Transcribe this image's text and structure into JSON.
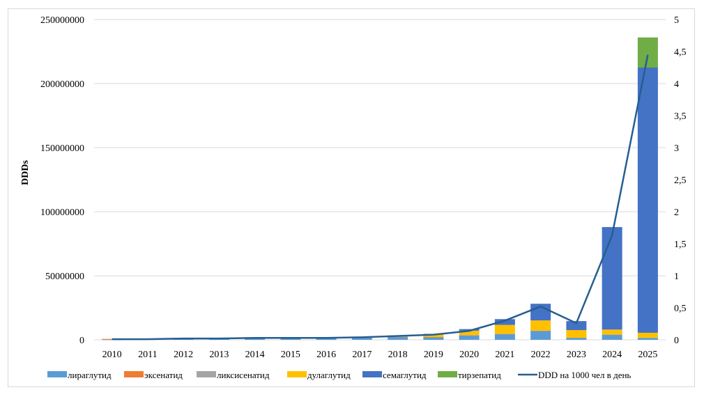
{
  "chart_data": {
    "type": "bar",
    "stacked": true,
    "ylabel": "DDDs",
    "ylim": [
      0,
      250000000
    ],
    "y_ticks": [
      "0",
      "50000000",
      "100000000",
      "150000000",
      "200000000",
      "250000000"
    ],
    "y2lim": [
      0,
      5
    ],
    "y2_ticks": [
      "0",
      "0,5",
      "1",
      "1,5",
      "2",
      "2,5",
      "3",
      "3,5",
      "4",
      "4,5",
      "5"
    ],
    "grid": true,
    "legend": "bottom",
    "categories": [
      "2010",
      "2011",
      "2012",
      "2013",
      "2014",
      "2015",
      "2016",
      "2017",
      "2018",
      "2019",
      "2020",
      "2021",
      "2022",
      "2023",
      "2024",
      "2025"
    ],
    "series": [
      {
        "name": "лираглутид",
        "color": "#5b9bd5",
        "values": [
          100000,
          500000,
          800000,
          900000,
          1200000,
          1300000,
          1400000,
          1600000,
          2200000,
          2000000,
          3500000,
          4500000,
          7000000,
          1500000,
          4000000,
          1500000
        ]
      },
      {
        "name": "эксенатид",
        "color": "#ed7d31",
        "values": [
          600000,
          200000,
          100000,
          50000,
          50000,
          50000,
          50000,
          50000,
          50000,
          50000,
          50000,
          50000,
          50000,
          0,
          0,
          0
        ]
      },
      {
        "name": "ликсисенатид",
        "color": "#a5a5a5",
        "values": [
          0,
          0,
          0,
          50000,
          100000,
          100000,
          100000,
          100000,
          100000,
          100000,
          100000,
          100000,
          100000,
          100000,
          0,
          0
        ]
      },
      {
        "name": "дулаглутид",
        "color": "#ffc000",
        "values": [
          0,
          0,
          0,
          0,
          0,
          100000,
          300000,
          600000,
          1200000,
          2000000,
          3500000,
          7000000,
          8000000,
          6000000,
          4000000,
          4000000
        ]
      },
      {
        "name": "семаглутид",
        "color": "#4472c4",
        "values": [
          0,
          0,
          0,
          0,
          0,
          0,
          0,
          0,
          0,
          500000,
          1200000,
          4500000,
          13000000,
          7000000,
          80000000,
          207000000
        ]
      },
      {
        "name": "тирзепатид",
        "color": "#70ad47",
        "values": [
          0,
          0,
          0,
          0,
          0,
          0,
          0,
          0,
          0,
          0,
          0,
          0,
          0,
          0,
          0,
          23500000
        ]
      }
    ],
    "line_series": {
      "name": "DDD на 1000 чел в день",
      "color": "#255e91",
      "axis": "right",
      "values": [
        0.01,
        0.01,
        0.02,
        0.02,
        0.03,
        0.03,
        0.03,
        0.04,
        0.06,
        0.08,
        0.14,
        0.3,
        0.52,
        0.26,
        1.63,
        4.45
      ]
    }
  }
}
